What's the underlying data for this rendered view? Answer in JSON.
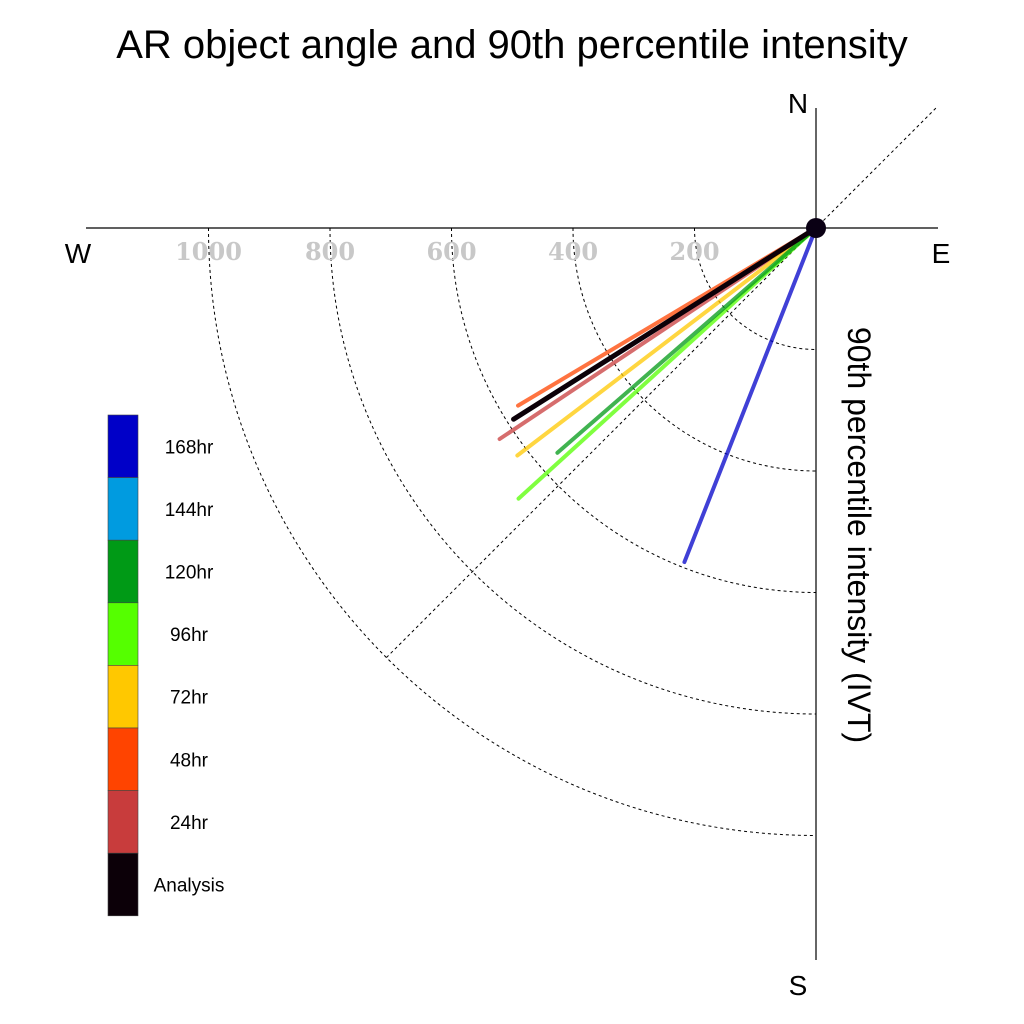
{
  "chart_data": {
    "type": "polar-vector",
    "title": "AR object angle and 90th percentile intensity",
    "ylabel": "90th percentile intensity (IVT)",
    "compass": {
      "north": "N",
      "south": "S",
      "east": "E",
      "west": "W"
    },
    "radial_ticks": [
      200,
      400,
      600,
      800,
      1000
    ],
    "radial_tick_labels": [
      "200",
      "400",
      "600",
      "800",
      "1000"
    ],
    "rlim": [
      0,
      1200
    ],
    "quadrant": "southwest",
    "diagonal_guide": "southwest-northeast",
    "series": [
      {
        "name": "168hr",
        "color": "#0000c8",
        "angle_from_west_deg": 68.5,
        "intensity": 591
      },
      {
        "name": "144hr",
        "color": "#009be0",
        "angle_from_west_deg": null,
        "intensity": null
      },
      {
        "name": "120hr",
        "color": "#009a16",
        "angle_from_west_deg": 41.0,
        "intensity": 564
      },
      {
        "name": "96hr",
        "color": "#55ff00",
        "angle_from_west_deg": 42.3,
        "intensity": 662
      },
      {
        "name": "72hr",
        "color": "#ffc800",
        "angle_from_west_deg": 37.3,
        "intensity": 618
      },
      {
        "name": "48hr",
        "color": "#ff4400",
        "angle_from_west_deg": 30.8,
        "intensity": 571
      },
      {
        "name": "24hr",
        "color": "#c83c3c",
        "angle_from_west_deg": 33.7,
        "intensity": 626
      },
      {
        "name": "Analysis",
        "color": "#0c0008",
        "angle_from_west_deg": 32.3,
        "intensity": 589
      }
    ]
  }
}
